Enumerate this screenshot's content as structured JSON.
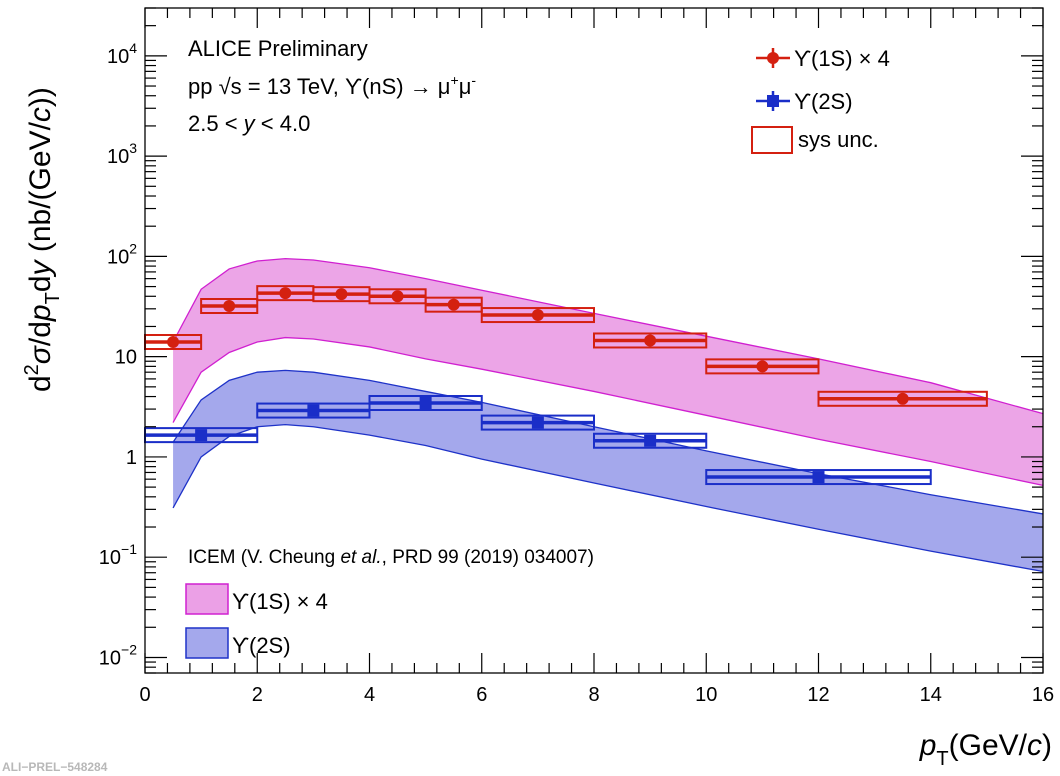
{
  "chart_data": {
    "type": "scatter",
    "xlabel": "p_T (GeV/c)",
    "ylabel": "d²σ/dp_T dy (nb/(GeV/c))",
    "xlim": [
      0,
      16
    ],
    "ylim": [
      0.007,
      30000
    ],
    "yscale": "log",
    "x_ticks": [
      "0",
      "2",
      "4",
      "6",
      "8",
      "10",
      "12",
      "14",
      "16"
    ],
    "y_ticks": [
      {
        "v": 10000,
        "m": "10",
        "e": "4"
      },
      {
        "v": 1000,
        "m": "10",
        "e": "3"
      },
      {
        "v": 100,
        "m": "10",
        "e": "2"
      },
      {
        "v": 10,
        "m": "10",
        "e": ""
      },
      {
        "v": 1,
        "m": "1",
        "e": ""
      },
      {
        "v": 0.1,
        "m": "10",
        "e": "−1"
      },
      {
        "v": 0.01,
        "m": "10",
        "e": "−2"
      }
    ],
    "annotations": {
      "line1": "ALICE Preliminary",
      "line2_a": "pp √s = 13 TeV, ϒ(nS) → μ",
      "line2_sup1": "+",
      "line2_mu": "μ",
      "line2_sup2": "-",
      "line3_a": "2.5 < ",
      "line3_y": "y",
      "line3_b": " < 4.0",
      "model_a": "ICEM (V. Cheung ",
      "model_etal": "et al.",
      "model_b": ", PRD 99 (2019) 034007)"
    },
    "legend": {
      "data_1s": "ϒ(1S) × 4",
      "data_2s": "ϒ(2S)",
      "sys": "sys unc.",
      "model_1s": "ϒ(1S) × 4",
      "model_2s": "ϒ(2S)"
    },
    "colors": {
      "ups1s": "#d42010",
      "ups2s": "#1a2ec8",
      "band1s_fill": "#eba0e6",
      "band1s_line": "#d020d0",
      "band2s_fill": "#a4a8ec",
      "band2s_line": "#1e32c8"
    },
    "series": [
      {
        "name": "ϒ(1S) × 4",
        "points": [
          {
            "x": 0.5,
            "xlo": 0,
            "xhi": 1,
            "y": 14
          },
          {
            "x": 1.5,
            "xlo": 1,
            "xhi": 2,
            "y": 32
          },
          {
            "x": 2.5,
            "xlo": 2,
            "xhi": 3,
            "y": 43
          },
          {
            "x": 3.5,
            "xlo": 3,
            "xhi": 4,
            "y": 42
          },
          {
            "x": 4.5,
            "xlo": 4,
            "xhi": 5,
            "y": 40
          },
          {
            "x": 5.5,
            "xlo": 5,
            "xhi": 6,
            "y": 33
          },
          {
            "x": 7,
            "xlo": 6,
            "xhi": 8,
            "y": 26
          },
          {
            "x": 9,
            "xlo": 8,
            "xhi": 10,
            "y": 14.5
          },
          {
            "x": 11,
            "xlo": 10,
            "xhi": 12,
            "y": 8
          },
          {
            "x": 13.5,
            "xlo": 12,
            "xhi": 15,
            "y": 3.8
          }
        ]
      },
      {
        "name": "ϒ(2S)",
        "points": [
          {
            "x": 1,
            "xlo": 0,
            "xhi": 2,
            "y": 1.65
          },
          {
            "x": 3,
            "xlo": 2,
            "xhi": 4,
            "y": 2.9
          },
          {
            "x": 5,
            "xlo": 4,
            "xhi": 6,
            "y": 3.45
          },
          {
            "x": 7,
            "xlo": 6,
            "xhi": 8,
            "y": 2.2
          },
          {
            "x": 9,
            "xlo": 8,
            "xhi": 10,
            "y": 1.45
          },
          {
            "x": 12,
            "xlo": 10,
            "xhi": 14,
            "y": 0.63
          }
        ]
      }
    ],
    "model_bands": [
      {
        "name": "ϒ(1S) × 4",
        "x": [
          0.5,
          1,
          1.5,
          2,
          2.5,
          3,
          4,
          5,
          6,
          8,
          10,
          12,
          14,
          16
        ],
        "upper": [
          14,
          47,
          75,
          90,
          95,
          92,
          77,
          60,
          46,
          27,
          16,
          9.5,
          5.5,
          2.7
        ],
        "lower": [
          2.2,
          7,
          11,
          14,
          15.5,
          15,
          12.5,
          9.5,
          7.5,
          4.5,
          2.6,
          1.5,
          0.9,
          0.52
        ]
      },
      {
        "name": "ϒ(2S)",
        "x": [
          0.5,
          1,
          1.5,
          2,
          2.5,
          3,
          4,
          5,
          6,
          8,
          10,
          12,
          14,
          16
        ],
        "upper": [
          1.4,
          3.7,
          5.8,
          7.0,
          7.3,
          7.0,
          5.8,
          4.5,
          3.5,
          2.0,
          1.15,
          0.68,
          0.42,
          0.27
        ],
        "lower": [
          0.31,
          1.0,
          1.6,
          2.0,
          2.1,
          2.0,
          1.65,
          1.3,
          0.95,
          0.55,
          0.32,
          0.19,
          0.115,
          0.072
        ]
      }
    ]
  },
  "watermark": "ALI−PREL−548284"
}
